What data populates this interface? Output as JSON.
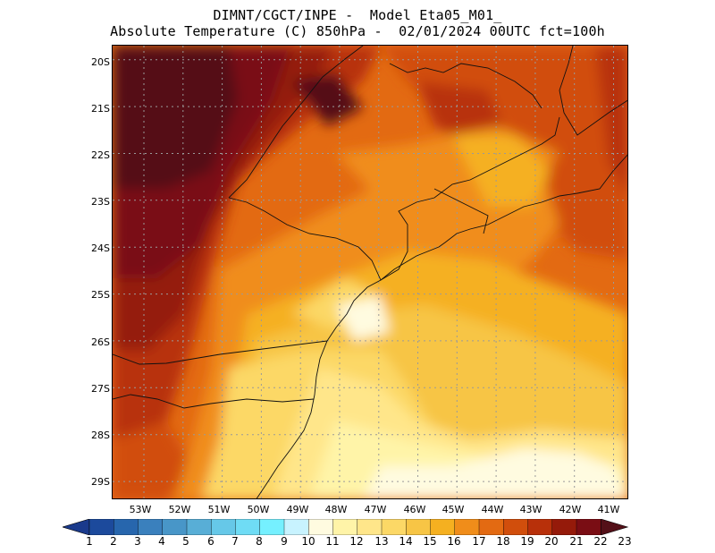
{
  "title": {
    "line1": "DIMNT/CGCT/INPE -  Model Eta05_M01_",
    "line2": "Absolute Temperature (C) 850hPa -  02/01/2024 00UTC fct=100h"
  },
  "map": {
    "lat_labels": [
      "20S",
      "21S",
      "22S",
      "23S",
      "24S",
      "25S",
      "26S",
      "27S",
      "28S",
      "29S"
    ],
    "lon_labels": [
      "53W",
      "52W",
      "51W",
      "50W",
      "49W",
      "48W",
      "47W",
      "46W",
      "45W",
      "44W",
      "43W",
      "42W",
      "41W"
    ],
    "lat_range": [
      -29.4,
      -19.7
    ],
    "lon_range": [
      -53.8,
      -40.6
    ]
  },
  "colorbar": {
    "labels": [
      "1",
      "2",
      "3",
      "4",
      "5",
      "6",
      "7",
      "8",
      "9",
      "10",
      "11",
      "12",
      "13",
      "14",
      "15",
      "16",
      "17",
      "18",
      "19",
      "20",
      "21",
      "22",
      "23"
    ],
    "colors": [
      "#1a3a8c",
      "#1c4a9c",
      "#2766ad",
      "#3a80bd",
      "#4896c8",
      "#58aed6",
      "#66c8e8",
      "#6fdcf5",
      "#75f0ff",
      "#c8f3ff",
      "#fffbe0",
      "#fff4a8",
      "#ffe68a",
      "#fcd866",
      "#f7c545",
      "#f5b020",
      "#f08d1a",
      "#e36a12",
      "#d14e0c",
      "#b8300a",
      "#951a0a",
      "#7a0d14",
      "#541018"
    ]
  }
}
